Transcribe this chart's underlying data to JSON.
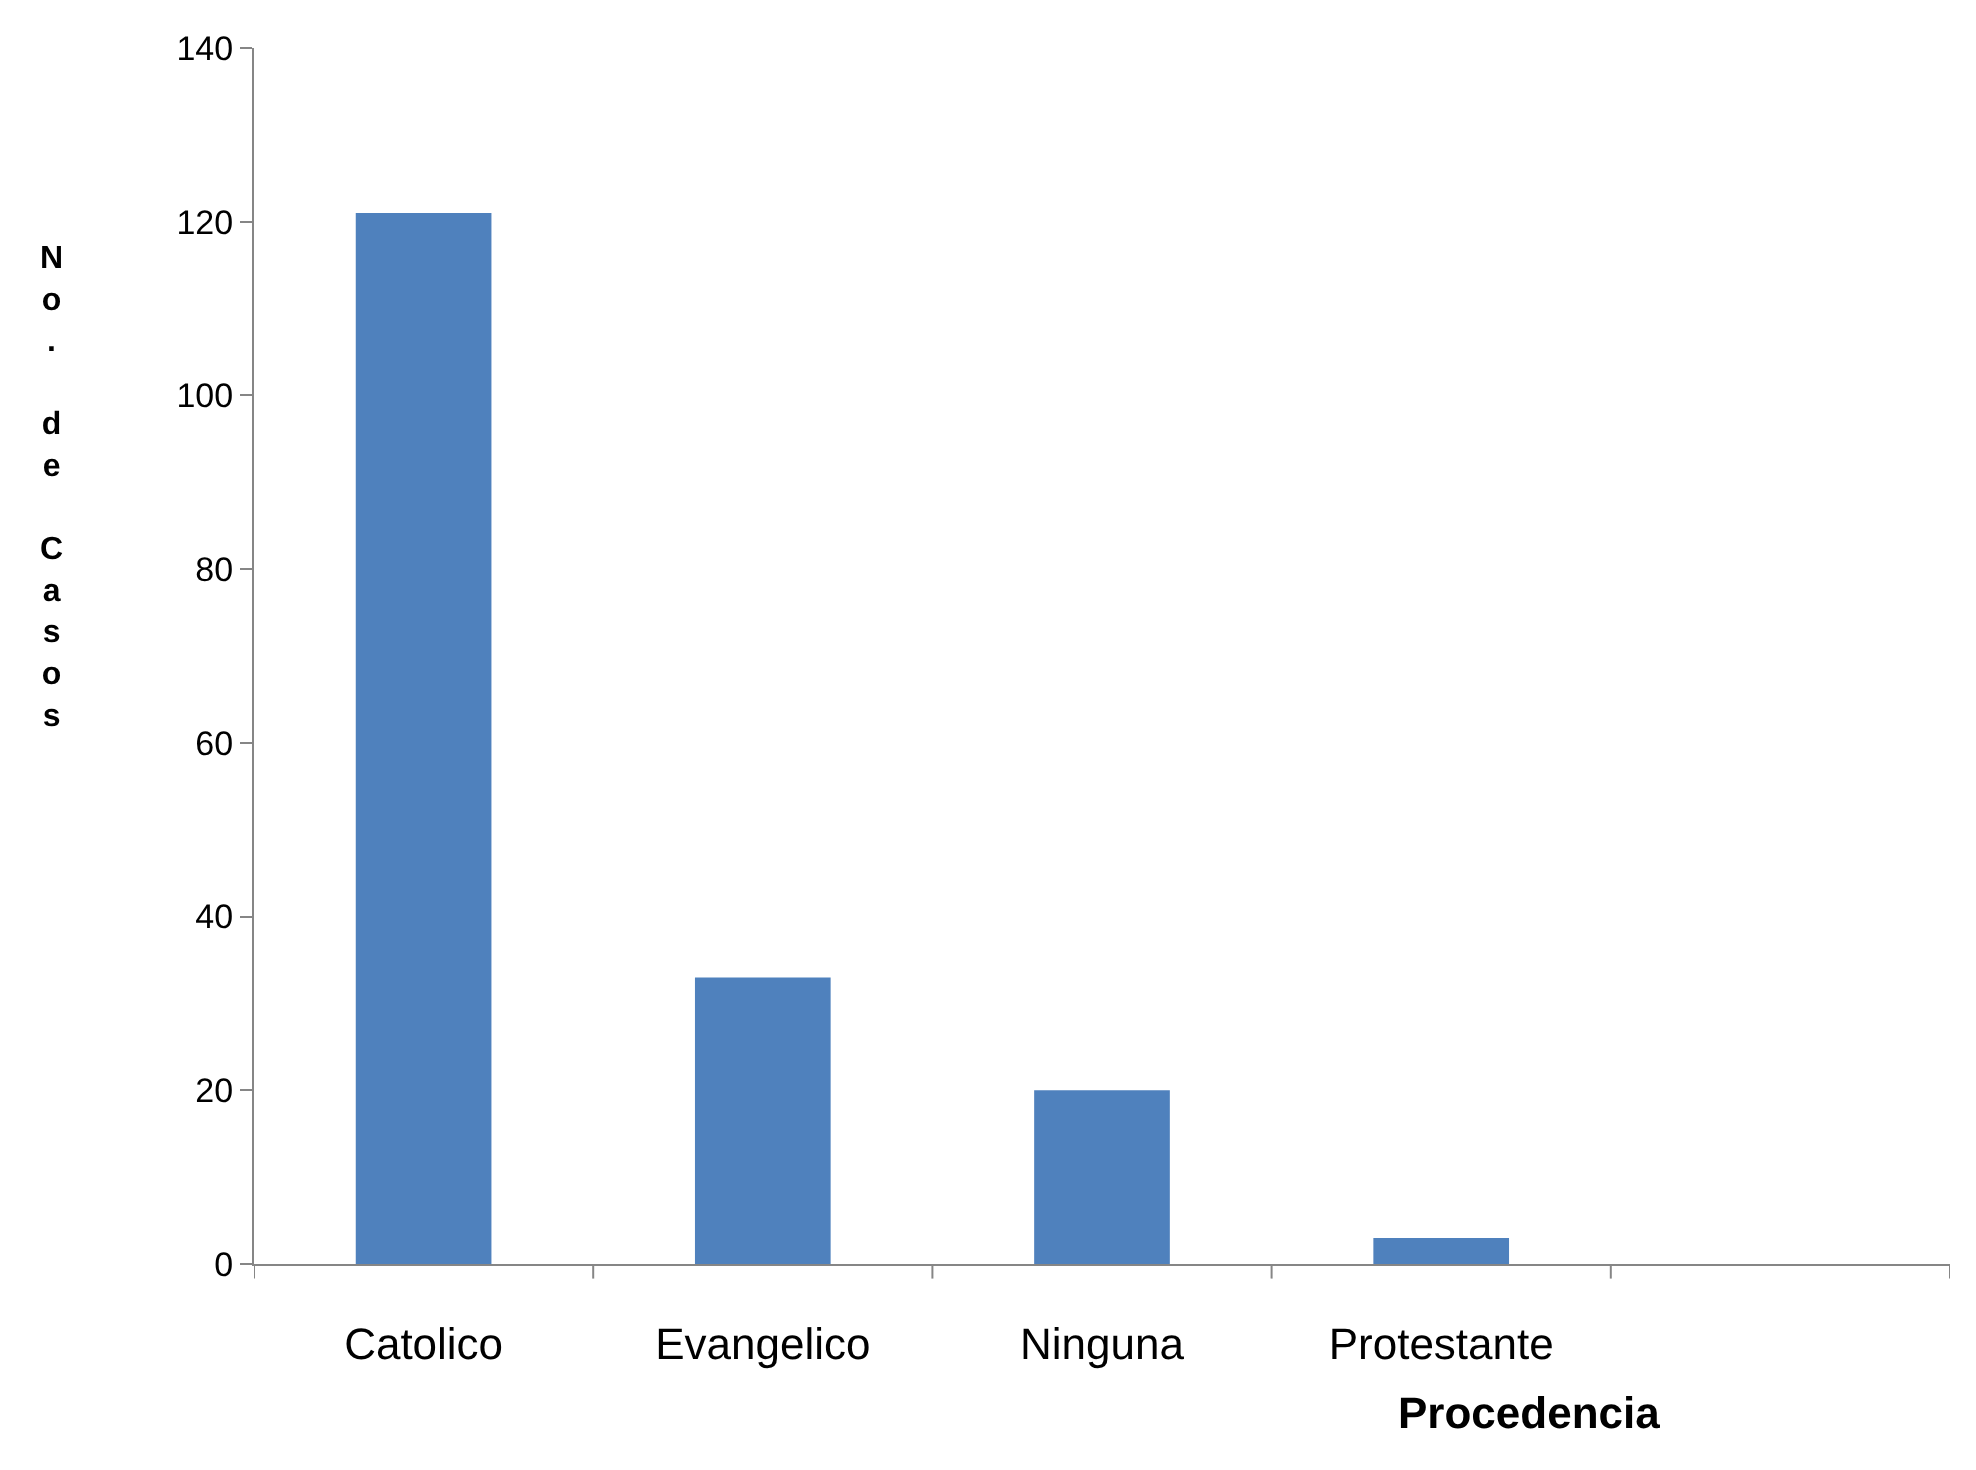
{
  "chart_data": {
    "type": "bar",
    "categories": [
      "Catolico",
      "Evangelico",
      "Ninguna",
      "Protestante",
      null
    ],
    "values": [
      121,
      33,
      20,
      3,
      null
    ],
    "color": "#4f81bd",
    "ylabel": "No. de Casos",
    "xlabel": "Procedencia",
    "ylim": [
      0,
      140
    ],
    "yticks": [
      0,
      20,
      40,
      60,
      80,
      100,
      120,
      140
    ],
    "grid": false,
    "legend": false
  }
}
